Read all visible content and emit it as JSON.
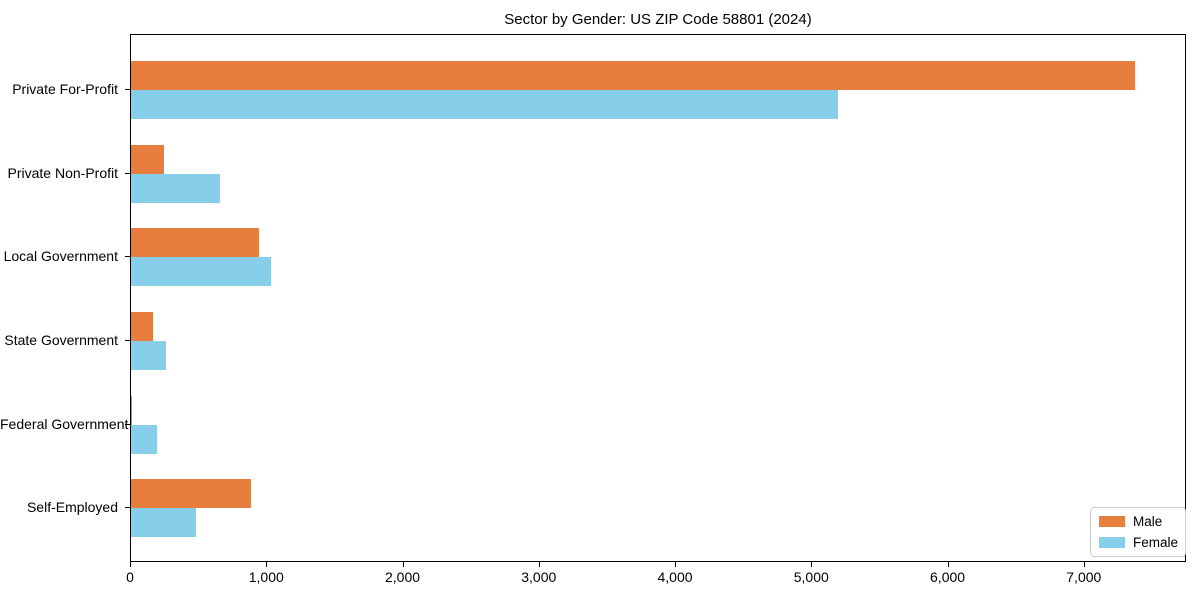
{
  "chart_data": {
    "type": "bar",
    "orientation": "horizontal",
    "title": "Sector by Gender: US ZIP Code 58801 (2024)",
    "categories": [
      "Private For-Profit",
      "Private Non-Profit",
      "Local Government",
      "State Government",
      "Federal Government",
      "Self-Employed"
    ],
    "series": [
      {
        "name": "Male",
        "color": "#e87e3d",
        "values": [
          7370,
          245,
          940,
          165,
          10,
          880
        ]
      },
      {
        "name": "Female",
        "color": "#87ceeb",
        "values": [
          5190,
          650,
          1030,
          255,
          190,
          480
        ]
      }
    ],
    "xlabel": "",
    "ylabel": "",
    "xlim": [
      0,
      7750
    ],
    "xticks": [
      0,
      1000,
      2000,
      3000,
      4000,
      5000,
      6000,
      7000
    ],
    "xtick_labels": [
      "0",
      "1,000",
      "2,000",
      "3,000",
      "4,000",
      "5,000",
      "6,000",
      "7,000"
    ],
    "legend": {
      "position": "lower right",
      "entries": [
        "Male",
        "Female"
      ]
    },
    "grid": false,
    "colors": {
      "male": "#e87e3d",
      "female": "#87ceeb",
      "spine": "#000000",
      "legend_border": "#cccccc"
    }
  }
}
